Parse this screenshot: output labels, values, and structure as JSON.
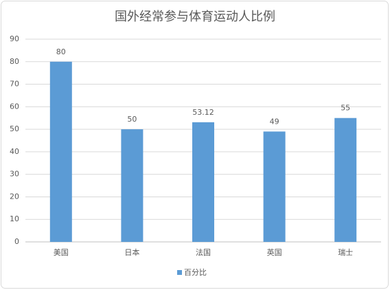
{
  "chart_data": {
    "type": "bar",
    "title": "国外经常参与体育运动人比例",
    "categories": [
      "美国",
      "日本",
      "法国",
      "英国",
      "瑞士"
    ],
    "series": [
      {
        "name": "百分比",
        "color": "#5b9bd5",
        "values": [
          80,
          50,
          53.12,
          49,
          55
        ]
      }
    ],
    "ylim": [
      0,
      90
    ],
    "yticks": [
      0,
      10,
      20,
      30,
      40,
      50,
      60,
      70,
      80,
      90
    ],
    "grid": true,
    "legend": "bottom",
    "data_labels": true
  }
}
